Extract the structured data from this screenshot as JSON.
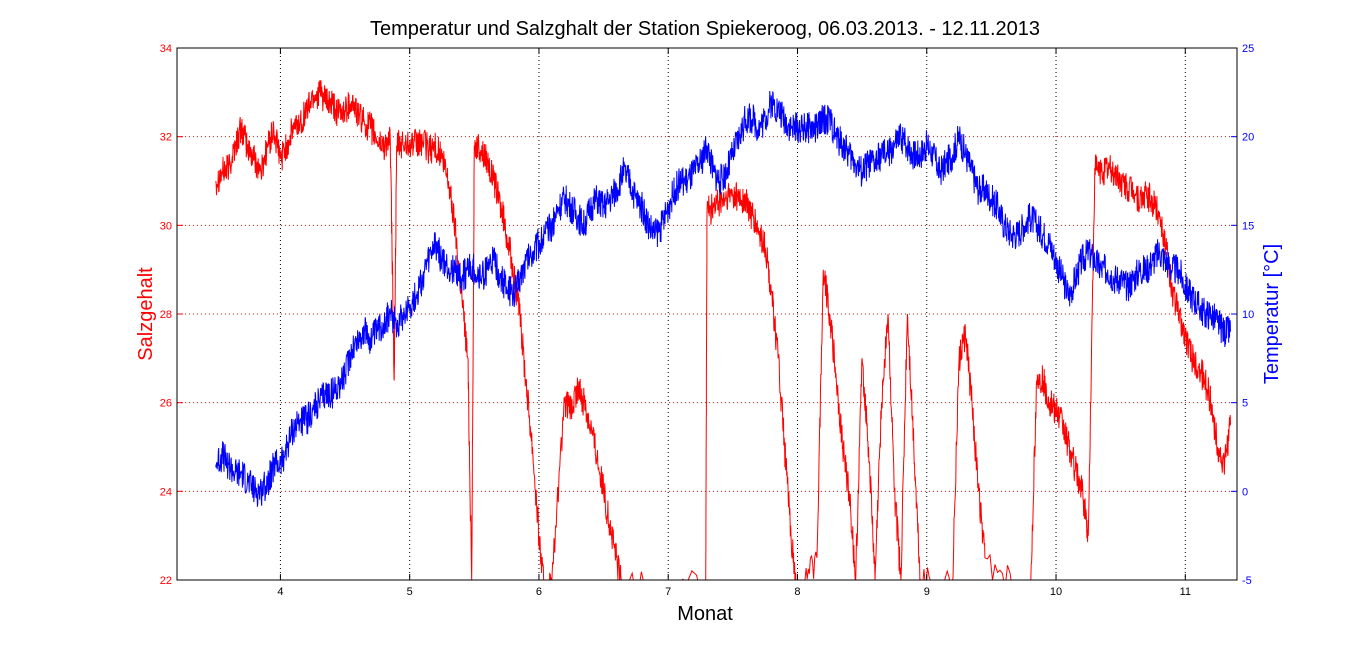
{
  "chart_data": {
    "type": "line",
    "title": "Temperatur und Salzghalt der Station Spiekeroog, 06.03.2013. - 12.11.2013",
    "xlabel": "Monat",
    "ylabel_left": "Salzgehalt",
    "ylabel_right": "Temperatur [°C]",
    "xlim": [
      3.2,
      11.4
    ],
    "ylim_left": [
      22,
      34
    ],
    "ylim_right": [
      -5,
      25
    ],
    "x_ticks": [
      4,
      5,
      6,
      7,
      8,
      9,
      10,
      11
    ],
    "y_ticks_left": [
      22,
      24,
      26,
      28,
      30,
      32,
      34
    ],
    "y_ticks_right": [
      -5,
      0,
      5,
      10,
      15,
      20,
      25
    ],
    "grid": true,
    "colors": {
      "salinity": "#ff0000",
      "temperature": "#0000ff",
      "grid_red": "#ff0000",
      "grid_black": "#000000"
    },
    "series": [
      {
        "axis": "left",
        "color": "#ff0000",
        "x": [
          3.5,
          3.55,
          3.6,
          3.65,
          3.7,
          3.75,
          3.8,
          3.85,
          3.9,
          3.95,
          4.0,
          4.05,
          4.1,
          4.15,
          4.2,
          4.25,
          4.3,
          4.35,
          4.4,
          4.45,
          4.5,
          4.55,
          4.6,
          4.65,
          4.7,
          4.75,
          4.8,
          4.85,
          4.88,
          4.9,
          4.95,
          5.0,
          5.05,
          5.1,
          5.15,
          5.2,
          5.25,
          5.3,
          5.35,
          5.4,
          5.45,
          5.48,
          5.5,
          5.55,
          5.6,
          5.65,
          5.7,
          5.75,
          5.8,
          5.85,
          5.9,
          5.95,
          6.0,
          6.05,
          6.1,
          6.2,
          6.25,
          6.3,
          6.35,
          6.4,
          6.45,
          6.5,
          6.55,
          6.6,
          6.65,
          7.29,
          7.3,
          7.35,
          7.4,
          7.45,
          7.5,
          7.55,
          7.6,
          7.65,
          7.7,
          7.75,
          7.8,
          7.85,
          7.9,
          7.95,
          8.0,
          8.15,
          8.2,
          8.25,
          8.3,
          8.35,
          8.4,
          8.45,
          8.5,
          8.55,
          8.6,
          8.65,
          8.7,
          8.75,
          8.8,
          8.85,
          8.9,
          8.95,
          9.2,
          9.25,
          9.3,
          9.35,
          9.4,
          9.45,
          9.8,
          9.85,
          9.9,
          9.95,
          10.0,
          10.05,
          10.1,
          10.15,
          10.2,
          10.25,
          10.3,
          10.35,
          10.4,
          10.45,
          10.5,
          10.55,
          10.6,
          10.65,
          10.7,
          10.75,
          10.8,
          10.85,
          10.9,
          10.95,
          11.0,
          11.05,
          11.1,
          11.15,
          11.2,
          11.25,
          11.3,
          11.35
        ],
        "y": [
          31.0,
          31.2,
          31.3,
          31.8,
          32.2,
          31.7,
          31.5,
          31.2,
          31.8,
          32.1,
          31.5,
          31.8,
          32.2,
          32.3,
          32.6,
          32.9,
          33.0,
          32.8,
          32.7,
          32.5,
          32.6,
          32.8,
          32.5,
          32.3,
          32.2,
          31.9,
          31.8,
          31.9,
          26.5,
          31.8,
          31.8,
          31.9,
          31.8,
          31.9,
          31.7,
          31.8,
          31.5,
          31.0,
          30.0,
          28.5,
          27.0,
          22.0,
          31.8,
          31.7,
          31.5,
          31.0,
          30.5,
          29.8,
          29.0,
          28.0,
          26.5,
          25.0,
          23.0,
          21.5,
          22.0,
          26.0,
          25.8,
          26.3,
          26.0,
          25.5,
          24.8,
          24.0,
          23.2,
          22.5,
          21.8,
          22.0,
          30.3,
          30.4,
          30.5,
          30.6,
          30.7,
          30.6,
          30.5,
          30.2,
          29.8,
          29.5,
          28.5,
          27.0,
          25.0,
          23.0,
          21.5,
          22.5,
          29.0,
          28.0,
          26.5,
          25.0,
          24.0,
          22.0,
          27.0,
          25.0,
          22.0,
          26.0,
          28.0,
          24.0,
          22.0,
          28.0,
          25.0,
          22.0,
          22.0,
          27.0,
          27.5,
          26.0,
          24.0,
          22.5,
          21.5,
          26.5,
          26.5,
          26.0,
          25.8,
          25.5,
          25.0,
          24.5,
          24.0,
          23.0,
          31.3,
          31.2,
          31.3,
          31.2,
          31.0,
          30.8,
          30.8,
          30.5,
          30.7,
          30.5,
          30.3,
          29.5,
          28.5,
          28.0,
          27.5,
          27.0,
          26.8,
          26.5,
          26.0,
          25.0,
          24.5,
          25.5
        ]
      },
      {
        "axis": "right",
        "color": "#0000ff",
        "x": [
          3.5,
          3.55,
          3.6,
          3.65,
          3.7,
          3.75,
          3.8,
          3.85,
          3.9,
          3.95,
          4.0,
          4.05,
          4.1,
          4.15,
          4.2,
          4.25,
          4.3,
          4.35,
          4.4,
          4.45,
          4.5,
          4.55,
          4.6,
          4.65,
          4.7,
          4.75,
          4.8,
          4.85,
          4.9,
          4.95,
          5.0,
          5.05,
          5.1,
          5.15,
          5.2,
          5.25,
          5.3,
          5.35,
          5.4,
          5.45,
          5.5,
          5.55,
          5.6,
          5.65,
          5.7,
          5.75,
          5.8,
          5.85,
          5.9,
          5.95,
          6.0,
          6.05,
          6.1,
          6.15,
          6.2,
          6.25,
          6.3,
          6.35,
          6.4,
          6.45,
          6.5,
          6.55,
          6.6,
          6.65,
          6.7,
          6.75,
          6.8,
          6.85,
          6.9,
          6.95,
          7.0,
          7.05,
          7.1,
          7.15,
          7.2,
          7.25,
          7.3,
          7.35,
          7.4,
          7.45,
          7.5,
          7.55,
          7.6,
          7.65,
          7.7,
          7.75,
          7.8,
          7.85,
          7.9,
          7.95,
          8.0,
          8.05,
          8.1,
          8.15,
          8.2,
          8.25,
          8.3,
          8.35,
          8.4,
          8.45,
          8.5,
          8.55,
          8.6,
          8.65,
          8.7,
          8.75,
          8.8,
          8.85,
          8.9,
          8.95,
          9.0,
          9.05,
          9.1,
          9.15,
          9.2,
          9.25,
          9.3,
          9.35,
          9.4,
          9.45,
          9.5,
          9.55,
          9.6,
          9.65,
          9.7,
          9.75,
          9.8,
          9.85,
          9.9,
          9.95,
          10.0,
          10.05,
          10.1,
          10.15,
          10.2,
          10.25,
          10.3,
          10.35,
          10.4,
          10.45,
          10.5,
          10.55,
          10.6,
          10.65,
          10.7,
          10.75,
          10.8,
          10.85,
          10.9,
          10.95,
          11.0,
          11.05,
          11.1,
          11.15,
          11.2,
          11.25,
          11.3,
          11.35
        ],
        "y": [
          1.5,
          2.0,
          1.5,
          1.0,
          1.0,
          0.5,
          0.0,
          0.0,
          0.5,
          1.5,
          1.5,
          2.5,
          3.5,
          4.0,
          4.0,
          4.5,
          5.0,
          5.5,
          5.5,
          6.0,
          6.5,
          8.0,
          8.5,
          9.0,
          8.5,
          9.0,
          9.5,
          10.0,
          9.5,
          10.0,
          10.5,
          11.0,
          12.0,
          13.0,
          14.0,
          13.0,
          12.5,
          12.5,
          12.0,
          12.5,
          12.5,
          12.0,
          12.5,
          13.0,
          12.0,
          11.5,
          11.0,
          12.0,
          13.0,
          13.5,
          14.0,
          14.5,
          15.0,
          16.0,
          16.5,
          16.0,
          15.5,
          15.0,
          16.0,
          16.5,
          16.0,
          16.5,
          17.0,
          18.0,
          17.5,
          16.5,
          16.0,
          15.0,
          14.5,
          15.0,
          16.0,
          17.0,
          17.5,
          17.5,
          18.0,
          18.5,
          19.5,
          18.0,
          17.5,
          18.0,
          19.0,
          20.0,
          21.0,
          21.0,
          20.5,
          21.0,
          22.0,
          21.5,
          21.0,
          20.5,
          20.5,
          20.5,
          20.5,
          20.5,
          21.0,
          21.0,
          20.0,
          19.5,
          19.0,
          18.5,
          18.0,
          18.5,
          18.5,
          19.0,
          19.0,
          19.5,
          20.0,
          19.5,
          19.0,
          19.0,
          19.5,
          19.0,
          18.0,
          18.5,
          19.0,
          20.0,
          19.0,
          18.0,
          17.0,
          17.0,
          16.5,
          16.0,
          15.0,
          14.5,
          14.5,
          15.0,
          15.5,
          15.0,
          14.5,
          14.0,
          13.0,
          12.0,
          11.0,
          12.0,
          13.0,
          13.5,
          13.0,
          12.5,
          12.5,
          12.0,
          12.0,
          11.5,
          12.0,
          12.5,
          12.5,
          13.0,
          13.5,
          13.0,
          12.5,
          12.5,
          11.5,
          11.0,
          10.5,
          10.0,
          10.0,
          9.5,
          9.0,
          9.0
        ]
      }
    ]
  }
}
